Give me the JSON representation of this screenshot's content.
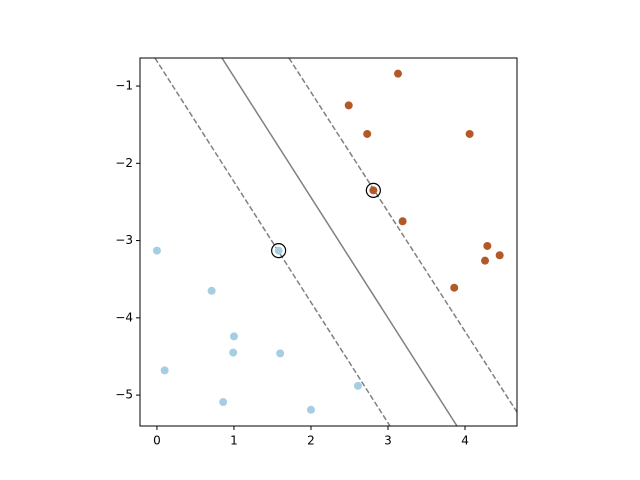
{
  "chart_data": {
    "type": "scatter",
    "xlim": [
      -0.22,
      4.675
    ],
    "ylim": [
      -5.4,
      -0.637
    ],
    "xticks": [
      0,
      1,
      2,
      3,
      4
    ],
    "yticks": [
      {
        "value": -1,
        "label": "−1"
      },
      {
        "value": -2,
        "label": "−2"
      },
      {
        "value": -3,
        "label": "−3"
      },
      {
        "value": -4,
        "label": "−4"
      },
      {
        "value": -5,
        "label": "−5"
      }
    ],
    "grid": false,
    "series": [
      {
        "style": "points",
        "color": "#a6cee3",
        "x": [
          0.0,
          0.71,
          0.1,
          1.0,
          0.99,
          1.6,
          0.86,
          2.0,
          2.61,
          1.58
        ],
        "values": [
          -3.13,
          -3.65,
          -4.68,
          -4.24,
          -4.45,
          -4.46,
          -5.09,
          -5.19,
          -4.88,
          -3.13
        ]
      },
      {
        "style": "points",
        "color": "#b15928",
        "x": [
          3.13,
          2.49,
          2.73,
          4.06,
          2.81,
          3.19,
          4.29,
          4.45,
          4.26,
          3.86
        ],
        "values": [
          -0.84,
          -1.25,
          -1.62,
          -1.62,
          -2.35,
          -2.75,
          -3.07,
          -3.19,
          -3.26,
          -3.61
        ]
      },
      {
        "style": "rings",
        "color": "#000000",
        "x": [
          1.58,
          2.81
        ],
        "values": [
          -3.13,
          -2.35
        ]
      },
      {
        "style": "dashed",
        "color": "#808080",
        "x": [
          -0.026,
          3.026
        ],
        "values": [
          -0.637,
          -5.4
        ]
      },
      {
        "style": "solid",
        "color": "#808080",
        "x": [
          0.844,
          3.896
        ],
        "values": [
          -0.637,
          -5.4
        ]
      },
      {
        "style": "dashed",
        "color": "#808080",
        "x": [
          1.714,
          4.675
        ],
        "values": [
          -0.637,
          -5.22
        ]
      }
    ]
  }
}
